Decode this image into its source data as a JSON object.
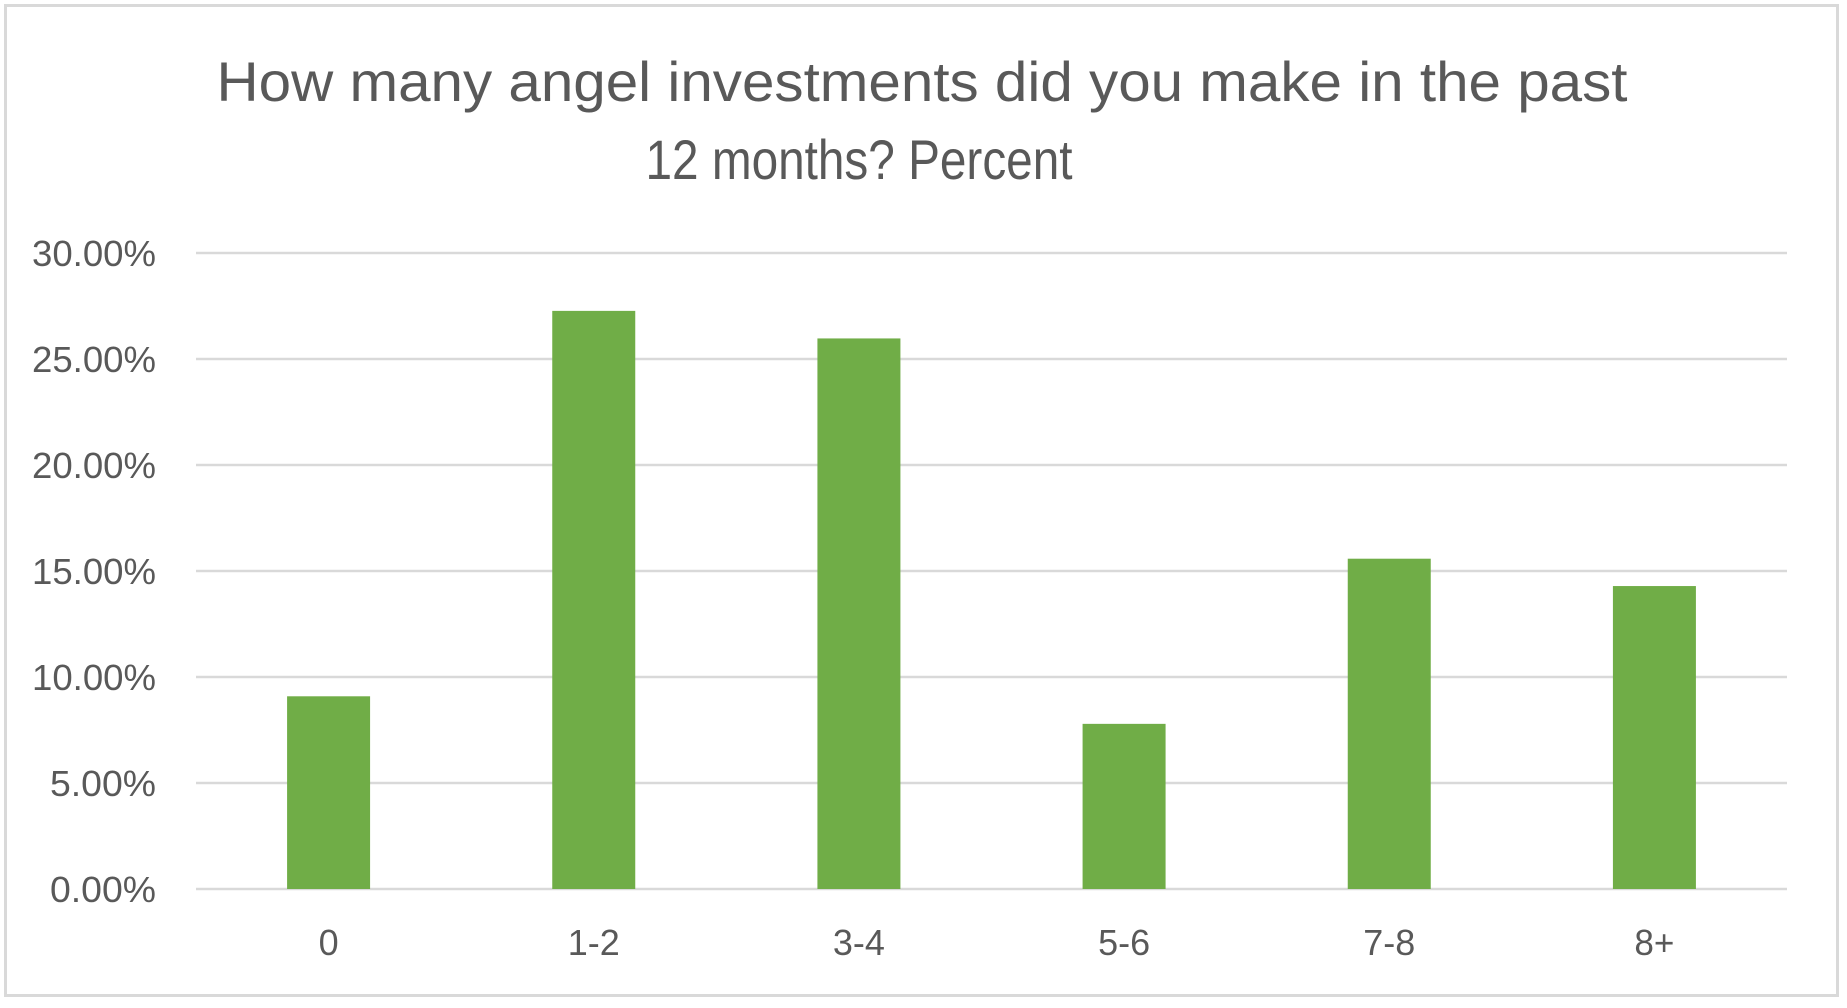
{
  "chart_data": {
    "type": "bar",
    "title": "How many angel investments did you make in the past 12 months?  Percent",
    "title_lines": [
      "How many angel investments did you make in the past",
      "12 months?  Percent"
    ],
    "xlabel": "",
    "ylabel": "",
    "categories": [
      "0",
      "1-2",
      "3-4",
      "5-6",
      "7-8",
      "8+"
    ],
    "values": [
      9.09,
      27.27,
      25.97,
      7.79,
      15.58,
      14.29
    ],
    "value_unit": "percent",
    "ylim": [
      0,
      30
    ],
    "yticks": [
      0,
      5,
      10,
      15,
      20,
      25,
      30
    ],
    "ytick_labels": [
      "0.00%",
      "5.00%",
      "10.00%",
      "15.00%",
      "20.00%",
      "25.00%",
      "30.00%"
    ],
    "grid": true,
    "legend": null,
    "colors": {
      "bar": "#70ad47",
      "text": "#595959",
      "grid": "#d9d9d9",
      "border": "#d9d9d9",
      "background": "#ffffff"
    }
  }
}
